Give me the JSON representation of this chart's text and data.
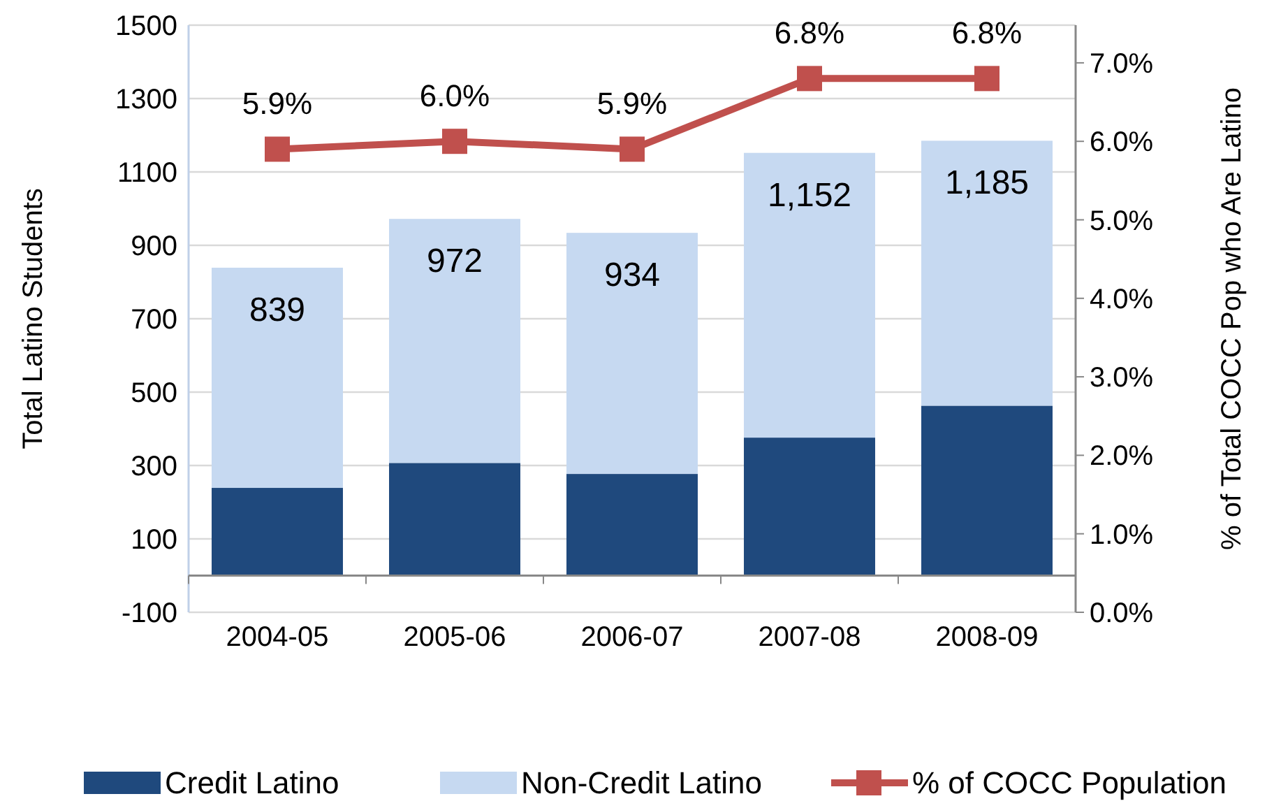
{
  "chart_data": {
    "type": "bar",
    "stacked": true,
    "categories": [
      "2004-05",
      "2005-06",
      "2006-07",
      "2007-08",
      "2008-09"
    ],
    "ylabel": "Total Latino Students",
    "y2label": "% of Total COCC Pop who Are Latino",
    "ylim": [
      -100,
      1500
    ],
    "yticks": [
      -100,
      100,
      300,
      500,
      700,
      900,
      1100,
      1300,
      1500
    ],
    "y2lim": [
      0,
      7.48
    ],
    "y2ticks": [
      {
        "value": 0,
        "label": "0.0%"
      },
      {
        "value": 1,
        "label": "1.0%"
      },
      {
        "value": 2,
        "label": "2.0%"
      },
      {
        "value": 3,
        "label": "3.0%"
      },
      {
        "value": 4,
        "label": "4.0%"
      },
      {
        "value": 5,
        "label": "5.0%"
      },
      {
        "value": 6,
        "label": "6.0%"
      },
      {
        "value": 7,
        "label": "7.0%"
      }
    ],
    "grid": "y",
    "legend": "bottom",
    "totals": [
      "839",
      "972",
      "934",
      "1,152",
      "1,185"
    ],
    "series": [
      {
        "name": "Credit Latino",
        "color": "#1f497d",
        "values": [
          239,
          307,
          277,
          376,
          463
        ]
      },
      {
        "name": "Non-Credit Latino",
        "color": "#c6d9f1",
        "values": [
          600,
          665,
          657,
          776,
          722
        ]
      },
      {
        "name": "% of COCC Population",
        "type": "line",
        "axis": "y2",
        "color": "#c0504d",
        "marker": "square",
        "values": [
          5.9,
          6.0,
          5.9,
          6.8,
          6.8
        ],
        "value_labels": [
          "5.9%",
          "6.0%",
          "5.9%",
          "6.8%",
          "6.8%"
        ]
      }
    ]
  }
}
